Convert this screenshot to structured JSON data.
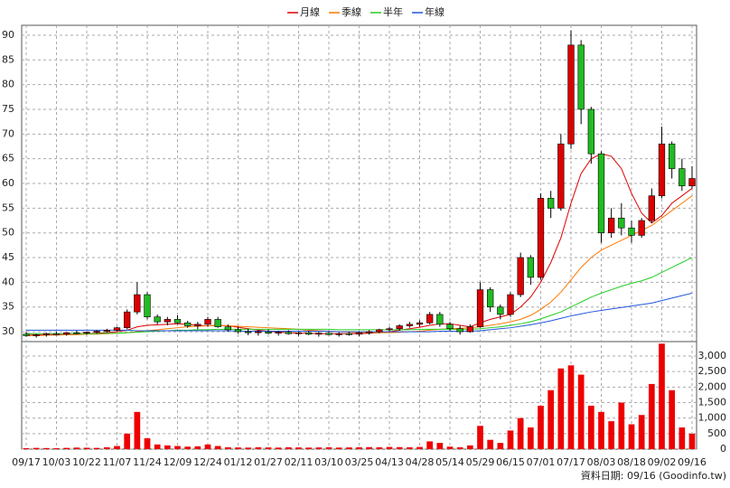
{
  "chart_data": {
    "type": "candlestick",
    "footer": "資料日期: 09/16 (Goodinfo.tw)",
    "categories": [
      "09/17",
      null,
      null,
      "10/03",
      null,
      null,
      "10/22",
      null,
      null,
      "11/07",
      null,
      null,
      "11/24",
      null,
      null,
      "12/09",
      null,
      null,
      "12/24",
      null,
      null,
      "01/12",
      null,
      null,
      "01/27",
      null,
      null,
      "02/11",
      null,
      null,
      "03/10",
      null,
      null,
      "03/25",
      null,
      null,
      "04/13",
      null,
      null,
      "04/28",
      null,
      null,
      "05/14",
      null,
      null,
      "05/29",
      null,
      null,
      "06/15",
      null,
      null,
      "07/01",
      null,
      null,
      "07/17",
      null,
      null,
      "08/03",
      null,
      null,
      "08/18",
      null,
      null,
      "09/02",
      null,
      null,
      "09/16"
    ],
    "open": [
      29.5,
      29.2,
      29.4,
      29.6,
      29.5,
      29.8,
      29.7,
      29.9,
      30.1,
      30.3,
      30.8,
      34,
      37.5,
      33,
      32,
      32.5,
      31.8,
      31.2,
      31.5,
      32.5,
      31,
      30.4,
      30,
      29.8,
      30,
      29.7,
      29.9,
      29.6,
      29.8,
      29.5,
      29.7,
      29.4,
      29.6,
      29.5,
      29.8,
      30,
      30.4,
      30.6,
      31.2,
      31.5,
      31.8,
      33.5,
      31.5,
      30.6,
      30,
      31,
      38.5,
      35,
      33.5,
      37.5,
      45,
      41,
      57,
      55,
      68,
      88,
      75,
      66,
      50,
      53,
      51,
      49.5,
      52.5,
      57.5,
      68,
      63,
      59.5
    ],
    "high": [
      30,
      29.6,
      29.8,
      30,
      29.9,
      30.2,
      30,
      30.3,
      30.6,
      31,
      34.5,
      40,
      38,
      33.5,
      33,
      33.3,
      32.2,
      32,
      33,
      33,
      31.5,
      31,
      30.6,
      30.3,
      30.5,
      30.2,
      30.3,
      30,
      30.2,
      30,
      30.1,
      29.9,
      30,
      30,
      30.3,
      30.6,
      31,
      31.5,
      32,
      32.3,
      34,
      34,
      32,
      31.2,
      31.5,
      40,
      39,
      35.5,
      38,
      46,
      45.5,
      58,
      58.5,
      70,
      91,
      89,
      75.5,
      66.5,
      55,
      56,
      52.5,
      53,
      59,
      71.5,
      68.5,
      65,
      63.5
    ],
    "low": [
      29,
      28.8,
      29,
      29.3,
      29.2,
      29.5,
      29.4,
      29.6,
      29.8,
      30,
      30.5,
      33.5,
      32.5,
      31.5,
      31.3,
      31.5,
      30.8,
      30.5,
      31,
      30.8,
      30,
      29.6,
      29.3,
      29.2,
      29.5,
      29.2,
      29.4,
      29.2,
      29.3,
      29,
      29.3,
      29,
      29.2,
      29.1,
      29.4,
      29.7,
      30,
      30.2,
      30.8,
      31,
      31.5,
      31,
      30.2,
      29.4,
      29.8,
      30.8,
      34,
      32.5,
      33,
      37,
      39.5,
      40.5,
      53,
      54.5,
      67,
      72,
      64,
      48,
      49,
      49.5,
      48,
      49,
      52,
      57,
      61,
      58.5,
      59
    ],
    "close": [
      29.2,
      29.4,
      29.6,
      29.5,
      29.8,
      29.7,
      29.9,
      30.1,
      30.3,
      30.8,
      34,
      37.5,
      33,
      32,
      32.5,
      31.8,
      31.2,
      31.5,
      32.5,
      31,
      30.4,
      30,
      29.8,
      30,
      29.7,
      29.9,
      29.6,
      29.8,
      29.5,
      29.7,
      29.4,
      29.6,
      29.5,
      29.8,
      30,
      30.4,
      30.6,
      31.2,
      31.5,
      31.8,
      33.5,
      31.5,
      30.6,
      30,
      31,
      38.5,
      35,
      33.5,
      37.5,
      45,
      41,
      57,
      55,
      68,
      88,
      75,
      66,
      50,
      53,
      51,
      49.5,
      52.5,
      57.5,
      68,
      63,
      59.5,
      61
    ],
    "up_color": "#dd0000",
    "down_color": "#22bb22",
    "ylim": [
      28,
      92
    ],
    "yticks": [
      30,
      35,
      40,
      45,
      50,
      55,
      60,
      65,
      70,
      75,
      80,
      85,
      90
    ],
    "grid": true,
    "legend": "top",
    "lines": [
      {
        "name": "月線",
        "color": "#dd0000",
        "values": [
          29.5,
          29.4,
          29.4,
          29.5,
          29.5,
          29.6,
          29.6,
          29.7,
          29.8,
          30,
          30.3,
          31,
          31.3,
          31.4,
          31.5,
          31.6,
          31.5,
          31.3,
          31.2,
          31.3,
          31.2,
          30.9,
          30.6,
          30.3,
          30.1,
          29.9,
          29.8,
          29.7,
          29.7,
          29.6,
          29.6,
          29.6,
          29.6,
          29.6,
          29.7,
          29.8,
          30,
          30.3,
          30.6,
          30.9,
          31.3,
          31.6,
          31.6,
          31.3,
          31,
          31.8,
          32.5,
          33,
          33.5,
          35,
          37,
          40,
          44,
          49,
          56,
          62,
          65,
          66,
          65.5,
          63,
          58,
          54,
          52,
          53.5,
          56,
          57.5,
          59
        ]
      },
      {
        "name": "季線",
        "color": "#ff7700",
        "values": [
          29.2,
          29.2,
          29.3,
          29.3,
          29.4,
          29.4,
          29.5,
          29.5,
          29.6,
          29.7,
          29.8,
          30,
          30.2,
          30.4,
          30.6,
          30.8,
          31,
          31.1,
          31.2,
          31.2,
          31.2,
          31.1,
          31,
          30.9,
          30.8,
          30.7,
          30.6,
          30.5,
          30.3,
          30.2,
          30.1,
          30,
          29.9,
          29.8,
          29.8,
          29.8,
          29.8,
          29.9,
          30,
          30.1,
          30.3,
          30.5,
          30.6,
          30.7,
          30.8,
          31,
          31.3,
          31.6,
          32,
          32.5,
          33.3,
          34.5,
          36,
          38,
          40.5,
          43,
          45,
          46.5,
          47.5,
          48.5,
          49.5,
          50.5,
          51.5,
          53,
          54.5,
          56,
          57.5
        ]
      },
      {
        "name": "半年",
        "color": "#22cc22",
        "values": [
          29.6,
          29.6,
          29.6,
          29.6,
          29.6,
          29.6,
          29.6,
          29.6,
          29.7,
          29.7,
          29.8,
          29.9,
          30,
          30.1,
          30.2,
          30.3,
          30.3,
          30.4,
          30.4,
          30.5,
          30.5,
          30.5,
          30.5,
          30.5,
          30.5,
          30.5,
          30.5,
          30.5,
          30.5,
          30.5,
          30.5,
          30.4,
          30.4,
          30.4,
          30.4,
          30.4,
          30.4,
          30.4,
          30.4,
          30.5,
          30.5,
          30.5,
          30.5,
          30.5,
          30.5,
          30.6,
          30.8,
          31,
          31.3,
          31.6,
          32,
          32.6,
          33.3,
          34,
          35,
          36,
          37,
          37.8,
          38.5,
          39.2,
          39.8,
          40.3,
          41,
          42,
          43,
          44,
          45
        ]
      },
      {
        "name": "年線",
        "color": "#2255dd",
        "values": [
          30.3,
          30.3,
          30.3,
          30.3,
          30.3,
          30.3,
          30.3,
          30.3,
          30.3,
          30.3,
          30.3,
          30.2,
          30.2,
          30.2,
          30.2,
          30.2,
          30.2,
          30.2,
          30.2,
          30.2,
          30.2,
          30.1,
          30.1,
          30.1,
          30.1,
          30.1,
          30.1,
          30.1,
          30.1,
          30.1,
          30.1,
          30,
          30,
          30,
          30,
          30,
          30,
          30,
          30,
          30,
          30,
          30.1,
          30.1,
          30.1,
          30.1,
          30.2,
          30.4,
          30.6,
          30.8,
          31.1,
          31.4,
          31.8,
          32.2,
          32.7,
          33.2,
          33.6,
          34,
          34.3,
          34.6,
          34.9,
          35.2,
          35.5,
          35.8,
          36.3,
          36.8,
          37.3,
          37.8
        ]
      }
    ],
    "volume": {
      "color": "#ee0000",
      "values": [
        30,
        40,
        35,
        30,
        40,
        50,
        45,
        40,
        60,
        100,
        500,
        1200,
        350,
        150,
        120,
        100,
        80,
        90,
        150,
        100,
        60,
        55,
        50,
        60,
        55,
        50,
        60,
        55,
        50,
        55,
        60,
        50,
        55,
        60,
        65,
        60,
        70,
        65,
        60,
        70,
        250,
        200,
        80,
        60,
        120,
        750,
        300,
        200,
        600,
        1000,
        700,
        1400,
        1900,
        2600,
        2700,
        2400,
        1400,
        1200,
        900,
        1500,
        800,
        1100,
        2100,
        3400,
        1900,
        700,
        500
      ],
      "ylim": [
        0,
        3466
      ],
      "yticks": [
        0,
        500,
        {
          "value": 1000,
          "label": "1,000"
        },
        {
          "value": 1500,
          "label": "1,500"
        },
        {
          "value": 2000,
          "label": "2,000"
        },
        {
          "value": 2500,
          "label": "2,500"
        },
        {
          "value": 3000,
          "label": "3,000"
        }
      ]
    }
  }
}
